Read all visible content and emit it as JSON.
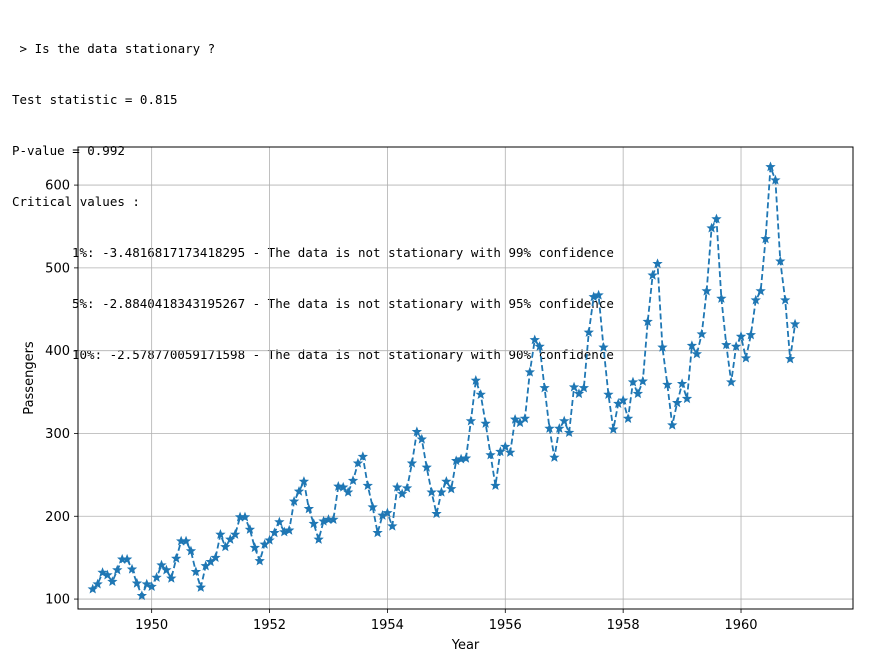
{
  "console": {
    "prompt": " > Is the data stationary ?",
    "test_statistic": "Test statistic = 0.815",
    "p_value": "P-value = 0.992",
    "critical_header": "Critical values :",
    "critical_lines": [
      "1%: -3.4816817173418295 - The data is not stationary with 99% confidence",
      "5%: -2.8840418343195267 - The data is not stationary with 95% confidence",
      "10%: -2.578770059171598 - The data is not stationary with 90% confidence"
    ]
  },
  "chart_data": {
    "type": "line",
    "title": "",
    "xlabel": "Year",
    "ylabel": "Passengers",
    "xlim": [
      1948.75,
      1961.9
    ],
    "ylim": [
      88,
      646
    ],
    "xticks": [
      1950,
      1952,
      1954,
      1956,
      1958,
      1960
    ],
    "yticks": [
      100,
      200,
      300,
      400,
      500,
      600
    ],
    "grid": true,
    "line_style": "dashed",
    "marker": "star",
    "color": "#1f77b4",
    "x_start": "1949-01",
    "x_end": "1960-12",
    "frequency": "monthly",
    "values": [
      112,
      118,
      132,
      129,
      121,
      135,
      148,
      148,
      136,
      119,
      104,
      118,
      115,
      126,
      141,
      135,
      125,
      149,
      170,
      170,
      158,
      133,
      114,
      140,
      145,
      150,
      178,
      163,
      172,
      178,
      199,
      199,
      184,
      162,
      146,
      166,
      171,
      180,
      193,
      181,
      183,
      218,
      230,
      242,
      209,
      191,
      172,
      194,
      196,
      196,
      236,
      235,
      229,
      243,
      264,
      272,
      237,
      211,
      180,
      201,
      204,
      188,
      235,
      227,
      234,
      264,
      302,
      293,
      259,
      229,
      203,
      229,
      242,
      233,
      267,
      269,
      270,
      315,
      364,
      347,
      312,
      274,
      237,
      278,
      284,
      277,
      317,
      313,
      318,
      374,
      413,
      405,
      355,
      306,
      271,
      306,
      315,
      301,
      356,
      348,
      355,
      422,
      465,
      467,
      404,
      347,
      305,
      336,
      340,
      318,
      362,
      348,
      363,
      435,
      491,
      505,
      404,
      359,
      310,
      337,
      360,
      342,
      406,
      396,
      420,
      472,
      548,
      559,
      463,
      407,
      362,
      405,
      417,
      391,
      419,
      461,
      472,
      535,
      622,
      606,
      508,
      461,
      390,
      432
    ]
  }
}
